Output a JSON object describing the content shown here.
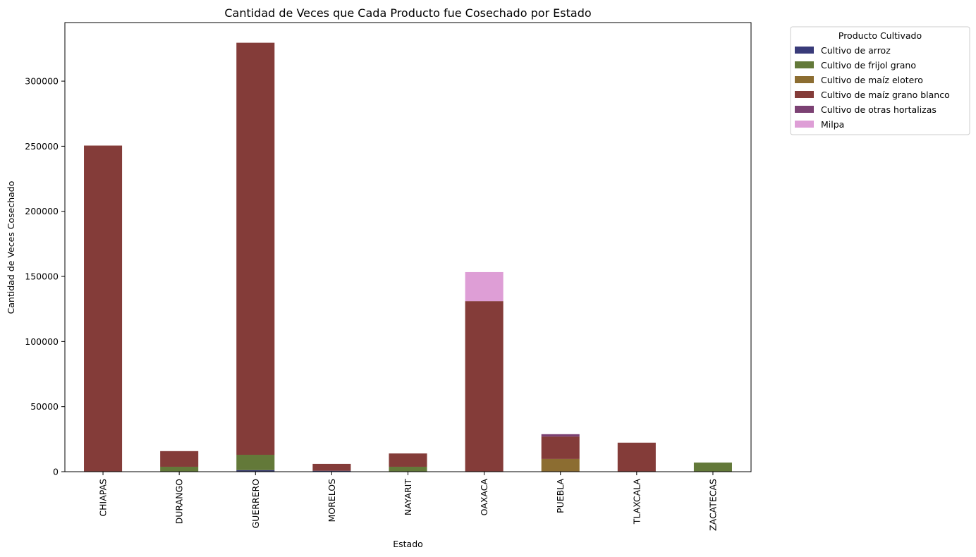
{
  "chart_data": {
    "type": "bar",
    "stacked": true,
    "title": "Cantidad de Veces que Cada Producto fue Cosechado por Estado",
    "xlabel": "Estado",
    "ylabel": "Cantidad de Veces Cosechado",
    "ylim": [
      0,
      345000
    ],
    "yticks": [
      0,
      50000,
      100000,
      150000,
      200000,
      250000,
      300000
    ],
    "grid": false,
    "legend": {
      "title": "Producto Cultivado",
      "placement": "outside-top-right"
    },
    "categories": [
      "CHIAPAS",
      "DURANGO",
      "GUERRERO",
      "MORELOS",
      "NAYARIT",
      "OAXACA",
      "PUEBLA",
      "TLAXCALA",
      "ZACATECAS"
    ],
    "series": [
      {
        "name": "Cultivo de arroz",
        "color": "#393b79",
        "values": [
          0,
          0,
          1200,
          700,
          0,
          0,
          0,
          0,
          0
        ]
      },
      {
        "name": "Cultivo de frijol grano",
        "color": "#637939",
        "values": [
          0,
          3800,
          11800,
          0,
          3800,
          0,
          0,
          0,
          7000
        ]
      },
      {
        "name": "Cultivo de maíz elotero",
        "color": "#8c6d31",
        "values": [
          0,
          0,
          0,
          0,
          0,
          0,
          9800,
          0,
          0
        ]
      },
      {
        "name": "Cultivo de maíz grano blanco",
        "color": "#843c39",
        "values": [
          250500,
          12000,
          316500,
          5300,
          10200,
          131000,
          17200,
          22300,
          0
        ]
      },
      {
        "name": "Cultivo de otras hortalizas",
        "color": "#7b4173",
        "values": [
          0,
          0,
          0,
          0,
          0,
          0,
          1800,
          0,
          0
        ]
      },
      {
        "name": "Milpa",
        "color": "#de9ed6",
        "values": [
          0,
          0,
          0,
          0,
          0,
          22300,
          0,
          0,
          0
        ]
      }
    ]
  }
}
